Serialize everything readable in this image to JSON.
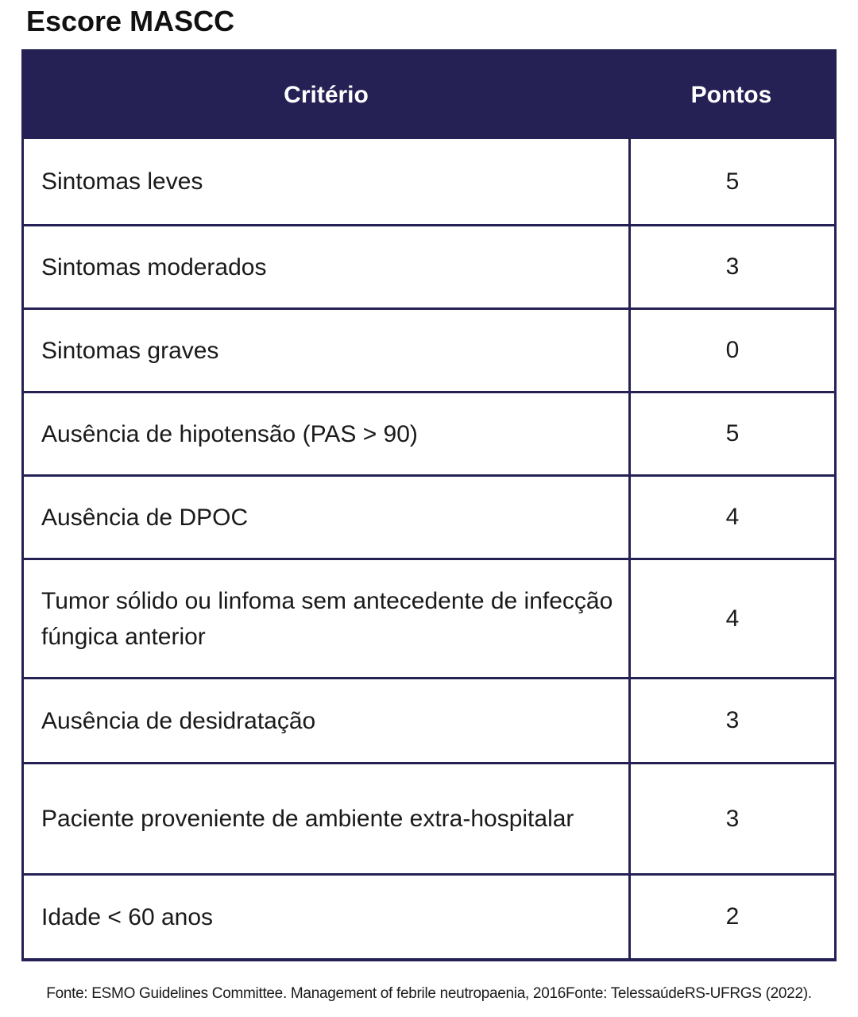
{
  "page": {
    "title": "Escore MASCC"
  },
  "colors": {
    "header_bg": "#252155",
    "border": "#252155",
    "header_text": "#ffffff",
    "body_text": "#1a1a1a"
  },
  "table": {
    "header": {
      "criterio": "Critério",
      "pontos": "Pontos"
    },
    "rows": [
      {
        "criterio": "Sintomas leves",
        "pontos": "5"
      },
      {
        "criterio": "Sintomas moderados",
        "pontos": "3"
      },
      {
        "criterio": "Sintomas graves",
        "pontos": "0"
      },
      {
        "criterio": "Ausência de hipotensão (PAS > 90)",
        "pontos": "5"
      },
      {
        "criterio": "Ausência de DPOC",
        "pontos": "4"
      },
      {
        "criterio": "Tumor sólido ou linfoma sem antecedente de infecção fúngica anterior",
        "pontos": "4"
      },
      {
        "criterio": "Ausência de desidratação",
        "pontos": "3"
      },
      {
        "criterio": "Paciente proveniente de ambiente extra-hospitalar",
        "pontos": "3"
      },
      {
        "criterio": "Idade < 60 anos",
        "pontos": "2"
      }
    ]
  },
  "footer": {
    "source": "Fonte: ESMO Guidelines Committee. Management of febrile neutropaenia, 2016Fonte: TelessaúdeRS-UFRGS (2022)."
  }
}
